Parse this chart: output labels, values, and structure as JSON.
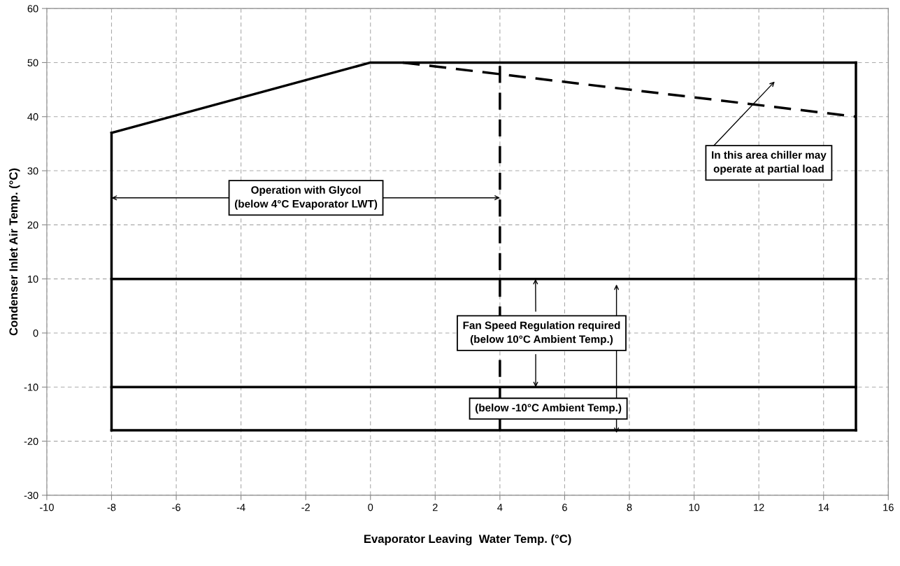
{
  "chart_data": {
    "type": "line",
    "xlabel": "Evaporator Leaving  Water Temp. (°C)",
    "ylabel": "Condenser Inlet Air Temp. (°C)",
    "xlim": [
      -10,
      16
    ],
    "xticks": [
      -10,
      -8,
      -6,
      -4,
      -2,
      0,
      2,
      4,
      6,
      8,
      10,
      12,
      14,
      16
    ],
    "ylim": [
      -30,
      60
    ],
    "yticks": [
      -30,
      -20,
      -10,
      0,
      10,
      20,
      30,
      40,
      50,
      60
    ],
    "grid": true,
    "marker": "none",
    "series": [
      {
        "color": "#000000",
        "line_style": "solid",
        "x": [
          -8,
          0,
          15
        ],
        "values": [
          37,
          50,
          50
        ]
      },
      {
        "color": "#000000",
        "line_style": "solid",
        "x": [
          -8,
          15
        ],
        "values": [
          -18,
          -18
        ]
      },
      {
        "color": "#000000",
        "line_style": "solid",
        "x": [
          -8,
          15
        ],
        "values": [
          10,
          10
        ]
      },
      {
        "color": "#000000",
        "line_style": "solid",
        "x": [
          -8,
          15
        ],
        "values": [
          -10,
          -10
        ]
      },
      {
        "color": "#000000",
        "line_style": "solid",
        "x": [
          -8,
          -8
        ],
        "values": [
          -18,
          37
        ]
      },
      {
        "color": "#000000",
        "line_style": "solid",
        "x": [
          15,
          15
        ],
        "values": [
          -18,
          50
        ]
      },
      {
        "color": "#000000",
        "line_style": "dashed",
        "x": [
          1,
          15
        ],
        "values": [
          50,
          40
        ]
      },
      {
        "color": "#000000",
        "line_style": "dashed",
        "x": [
          4,
          4
        ],
        "values": [
          -18,
          50
        ]
      }
    ],
    "annotations": [
      {
        "text": "Operation with Glycol\n(below 4°C Evaporator LWT)",
        "x": 4,
        "y": 25
      },
      "In this area chiller may\noperate at partial load",
      {
        "text": "Fan Speed Regulation required\n(below 10°C Ambient Temp.)",
        "x": 5.1,
        "y": 10
      },
      "(below -10°C Ambient Temp.)"
    ]
  }
}
